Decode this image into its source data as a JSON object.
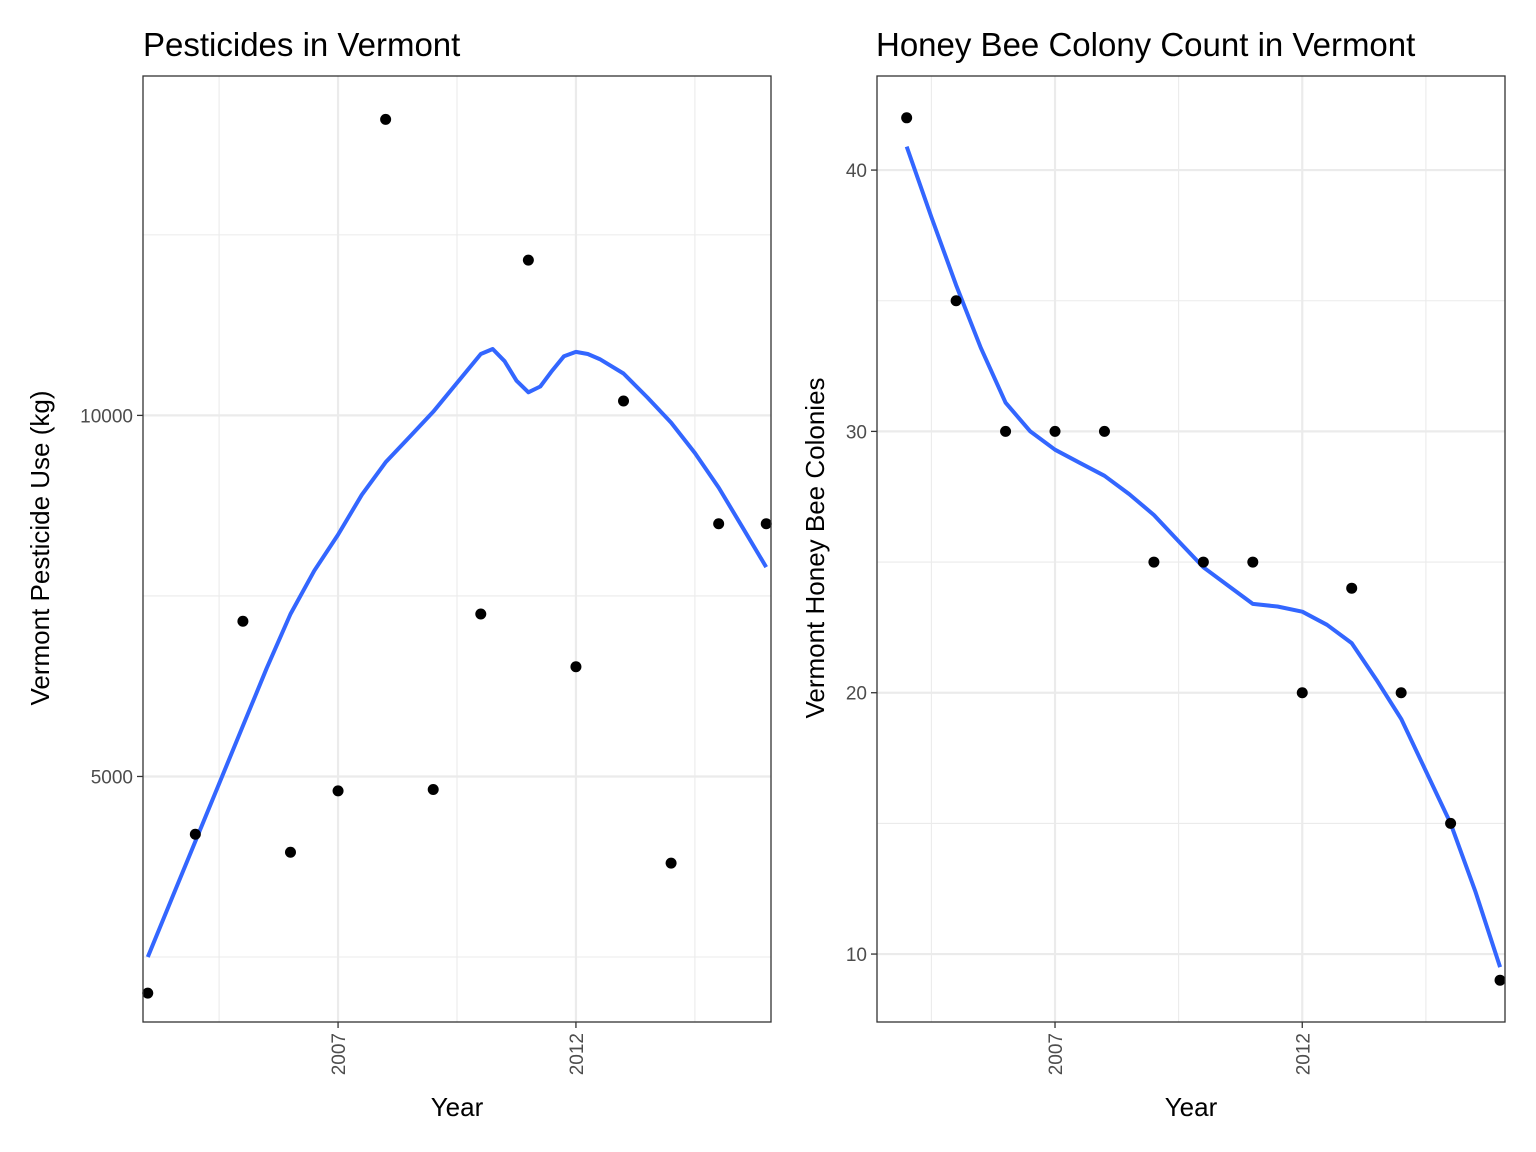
{
  "chart_data": [
    {
      "type": "scatter",
      "title": "Pesticides in Vermont",
      "xlabel": "Year",
      "ylabel": "Vermont Pesticide Use (kg)",
      "xlim": [
        2002.9,
        2016.1
      ],
      "ylim": [
        1600,
        14700
      ],
      "x_ticks": [
        2007,
        2012
      ],
      "x_minor": [
        2004.5,
        2009.5,
        2014.5
      ],
      "y_ticks": [
        5000,
        10000
      ],
      "y_minor": [
        2500,
        7500,
        12500
      ],
      "grid": true,
      "points": {
        "x": [
          2003,
          2004,
          2005,
          2006,
          2007,
          2008,
          2009,
          2010,
          2011,
          2012,
          2013,
          2014,
          2015,
          2016
        ],
        "y": [
          2000,
          4200,
          7150,
          3950,
          4800,
          14100,
          4820,
          7250,
          12150,
          6520,
          10200,
          3800,
          8500,
          8500
        ]
      },
      "smooth": {
        "x": [
          2003,
          2003.5,
          2004,
          2004.5,
          2005,
          2005.5,
          2006,
          2006.5,
          2007,
          2007.5,
          2008,
          2008.5,
          2009,
          2009.5,
          2010,
          2010.25,
          2010.5,
          2010.75,
          2011,
          2011.25,
          2011.5,
          2011.75,
          2012,
          2012.25,
          2012.5,
          2013,
          2013.5,
          2014,
          2014.5,
          2015,
          2015.5,
          2016
        ],
        "y": [
          2500,
          3300,
          4100,
          4900,
          5700,
          6500,
          7250,
          7850,
          8350,
          8900,
          9350,
          9700,
          10050,
          10450,
          10850,
          10920,
          10750,
          10480,
          10320,
          10400,
          10620,
          10820,
          10880,
          10850,
          10780,
          10580,
          10250,
          9900,
          9480,
          9000,
          8450,
          7900
        ]
      }
    },
    {
      "type": "scatter",
      "title": "Honey Bee Colony Count in Vermont",
      "xlabel": "Year",
      "ylabel": "Vermont Honey Bee Colonies",
      "xlim": [
        2003.4,
        2016.1
      ],
      "ylim": [
        7.4,
        43.6
      ],
      "x_ticks": [
        2007,
        2012
      ],
      "x_minor": [
        2004.5,
        2009.5,
        2014.5
      ],
      "y_ticks": [
        10,
        20,
        30,
        40
      ],
      "y_minor": [
        15,
        25,
        35
      ],
      "grid": true,
      "points": {
        "x": [
          2004,
          2005,
          2006,
          2007,
          2008,
          2009,
          2010,
          2011,
          2012,
          2013,
          2014,
          2015,
          2016
        ],
        "y": [
          42,
          35,
          30,
          30,
          30,
          25,
          25,
          25,
          20,
          24,
          20,
          15,
          9
        ]
      },
      "smooth": {
        "x": [
          2004,
          2004.5,
          2005,
          2005.5,
          2006,
          2006.5,
          2007,
          2007.5,
          2008,
          2008.5,
          2009,
          2009.5,
          2010,
          2010.5,
          2011,
          2011.5,
          2012,
          2012.5,
          2013,
          2013.5,
          2014,
          2014.5,
          2015,
          2015.5,
          2016
        ],
        "y": [
          40.9,
          38.2,
          35.6,
          33.2,
          31.1,
          30.0,
          29.3,
          28.8,
          28.3,
          27.6,
          26.8,
          25.8,
          24.8,
          24.1,
          23.4,
          23.3,
          23.1,
          22.6,
          21.9,
          20.5,
          19.0,
          17.0,
          15.0,
          12.4,
          9.5
        ]
      }
    }
  ]
}
